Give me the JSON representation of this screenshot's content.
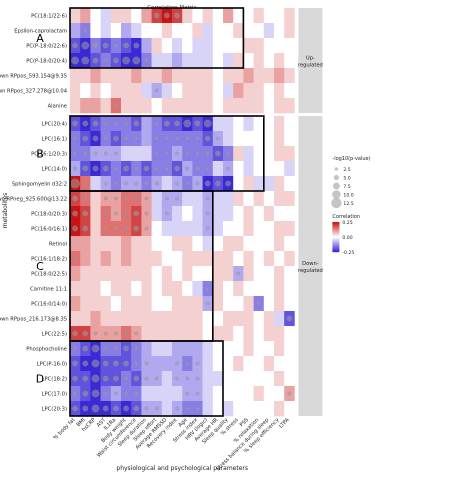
{
  "chart_data": {
    "type": "heatmap",
    "title": "Correlation Matrix",
    "xlabel": "physiological and psychological parameters",
    "ylabel": "metabolites",
    "rows": [
      "PC(18:1/22:6)",
      "Epsilon-caprolactam",
      "PC(P-18:0/22:6)",
      "PC(P-18:0/20:4)",
      "Unknown RPpos_593.154@9.35",
      "Unknown RPpos_327.278@10.04",
      "Alanine",
      "LPC(20:4)",
      "LPC(16:1)",
      "PC(16:1/20:3)",
      "LPC(14:0)",
      "Sphingomyelin d32:2",
      "Unknown RPneg_925.600@13.22",
      "PC(18:0/20:3)",
      "PC(16:0/16:1)",
      "Retinol",
      "PC(16:1/18:2)",
      "PC(18:0/22:5)",
      "Carnitine 11:1",
      "PC(16:0/14:0)",
      "Unknown RPpos_216.173@8.35",
      "LPC(22:5)",
      "Phosphocholine",
      "LPC(P-16:0)",
      "LPC(18:2)",
      "LPC(17:0)",
      "LPC(20:3)"
    ],
    "columns": [
      "% body fat",
      "BMI",
      "hsCRP",
      "AST",
      "IL1Ra",
      "Body weight",
      "Waist circumference",
      "Sleep duration",
      "Sleep effort",
      "Average RMSSD",
      "Recovery index",
      "Age",
      "Stress index",
      "HRV (logic)",
      "Average HR",
      "Sleep quality",
      "% stress",
      "PSS",
      "% relaxation",
      "Stress balance during sleep",
      "% sleep efficiency",
      "LTPA"
    ],
    "values": [
      [
        0.05,
        0.1,
        0.0,
        -0.05,
        0.05,
        0.05,
        0.0,
        0.1,
        0.2,
        0.25,
        0.2,
        0.05,
        0.0,
        0.05,
        0.0,
        0.1,
        0.0,
        0.0,
        0.05,
        0.0,
        0.0,
        0.05
      ],
      [
        -0.1,
        -0.15,
        0.0,
        -0.05,
        0.0,
        -0.1,
        -0.05,
        0.0,
        0.0,
        0.05,
        0.0,
        0.0,
        0.05,
        -0.05,
        0.0,
        0.0,
        0.05,
        0.0,
        0.0,
        -0.05,
        0.0,
        0.05
      ],
      [
        -0.2,
        -0.25,
        -0.15,
        -0.2,
        -0.15,
        -0.2,
        -0.25,
        -0.1,
        0.05,
        0.0,
        -0.05,
        0.0,
        -0.05,
        -0.05,
        0.0,
        0.0,
        0.0,
        0.05,
        0.05,
        0.0,
        0.0,
        0.0
      ],
      [
        -0.25,
        -0.3,
        -0.2,
        -0.15,
        -0.2,
        -0.25,
        -0.3,
        -0.15,
        -0.05,
        -0.05,
        -0.1,
        -0.05,
        -0.05,
        -0.05,
        0.0,
        -0.05,
        0.05,
        0.0,
        0.05,
        0.0,
        0.05,
        0.0
      ],
      [
        0.05,
        0.05,
        0.1,
        0.05,
        0.05,
        0.05,
        0.1,
        0.05,
        0.05,
        0.1,
        0.05,
        0.05,
        0.05,
        0.05,
        0.0,
        0.05,
        0.05,
        0.1,
        0.05,
        0.05,
        0.1,
        0.05
      ],
      [
        0.05,
        0.0,
        0.05,
        0.0,
        0.05,
        0.05,
        0.05,
        -0.05,
        -0.1,
        -0.05,
        0.0,
        0.05,
        0.05,
        0.05,
        0.0,
        -0.05,
        0.1,
        0.05,
        0.05,
        0.0,
        0.05,
        0.0
      ],
      [
        0.05,
        0.1,
        0.1,
        0.05,
        0.15,
        0.05,
        0.05,
        0.05,
        0.0,
        0.05,
        0.05,
        0.05,
        0.05,
        0.05,
        0.0,
        0.05,
        0.05,
        0.05,
        0.05,
        0.0,
        0.05,
        0.05
      ],
      [
        -0.2,
        -0.25,
        -0.2,
        -0.15,
        -0.15,
        -0.15,
        -0.2,
        -0.1,
        -0.15,
        -0.2,
        -0.2,
        -0.25,
        -0.2,
        -0.25,
        -0.05,
        -0.05,
        0.0,
        -0.05,
        0.0,
        0.0,
        0.05,
        0.0
      ],
      [
        -0.15,
        -0.2,
        -0.25,
        -0.15,
        -0.2,
        -0.15,
        -0.15,
        -0.1,
        -0.15,
        -0.15,
        -0.15,
        -0.15,
        -0.15,
        -0.2,
        -0.1,
        -0.05,
        0.0,
        0.0,
        0.0,
        0.0,
        0.05,
        0.0
      ],
      [
        -0.15,
        -0.15,
        -0.1,
        -0.1,
        -0.1,
        -0.05,
        -0.05,
        -0.05,
        -0.15,
        -0.15,
        -0.1,
        -0.15,
        -0.15,
        -0.15,
        -0.2,
        -0.15,
        0.05,
        -0.05,
        0.0,
        0.0,
        0.05,
        0.05
      ],
      [
        -0.1,
        -0.2,
        -0.25,
        -0.2,
        -0.15,
        -0.2,
        -0.15,
        -0.2,
        -0.15,
        -0.15,
        -0.2,
        -0.1,
        -0.15,
        -0.15,
        -0.05,
        -0.1,
        0.0,
        -0.05,
        0.0,
        0.0,
        0.0,
        -0.05
      ],
      [
        0.3,
        0.15,
        -0.05,
        -0.1,
        -0.15,
        -0.1,
        -0.1,
        -0.15,
        -0.1,
        -0.05,
        -0.1,
        -0.15,
        -0.1,
        -0.25,
        -0.2,
        -0.25,
        0.0,
        0.05,
        -0.05,
        -0.05,
        0.05,
        0.0
      ],
      [
        0.2,
        0.15,
        0.05,
        0.1,
        0.1,
        0.15,
        0.15,
        0.1,
        -0.05,
        -0.1,
        -0.1,
        -0.05,
        -0.05,
        -0.1,
        -0.05,
        -0.05,
        0.05,
        0.0,
        0.05,
        0.0,
        0.05,
        0.05
      ],
      [
        0.25,
        0.2,
        0.05,
        0.15,
        0.1,
        0.15,
        0.2,
        0.1,
        -0.05,
        -0.1,
        -0.05,
        0.0,
        -0.05,
        -0.1,
        -0.05,
        -0.05,
        0.0,
        0.05,
        0.0,
        0.05,
        0.0,
        0.0
      ],
      [
        0.25,
        0.2,
        0.05,
        0.15,
        0.15,
        0.15,
        0.2,
        0.1,
        0.0,
        -0.05,
        -0.05,
        -0.05,
        -0.05,
        -0.1,
        -0.05,
        0.0,
        0.0,
        0.05,
        0.0,
        0.0,
        0.05,
        0.05
      ],
      [
        0.1,
        0.1,
        0.05,
        0.05,
        0.05,
        0.1,
        0.05,
        0.05,
        0.0,
        0.0,
        0.05,
        0.05,
        0.0,
        -0.05,
        0.0,
        0.05,
        0.05,
        0.0,
        0.0,
        0.0,
        0.05,
        0.0
      ],
      [
        0.15,
        0.1,
        0.05,
        0.1,
        0.05,
        0.1,
        0.05,
        0.05,
        0.05,
        0.0,
        0.0,
        0.05,
        0.05,
        0.05,
        0.05,
        0.05,
        0.0,
        0.05,
        0.0,
        0.05,
        0.0,
        0.05
      ],
      [
        0.1,
        0.05,
        0.05,
        0.05,
        0.05,
        0.05,
        0.05,
        0.05,
        0.0,
        0.05,
        0.0,
        0.05,
        0.0,
        0.0,
        0.05,
        0.05,
        -0.1,
        0.05,
        0.0,
        0.0,
        0.05,
        0.0
      ],
      [
        0.05,
        0.05,
        0.05,
        0.0,
        0.05,
        0.05,
        0.0,
        0.05,
        0.0,
        0.05,
        0.05,
        0.0,
        -0.05,
        -0.15,
        0.05,
        0.0,
        0.05,
        0.0,
        0.0,
        0.0,
        0.05,
        0.0
      ],
      [
        0.1,
        0.05,
        0.05,
        0.05,
        0.0,
        0.05,
        0.05,
        0.05,
        0.0,
        0.0,
        0.05,
        0.05,
        0.05,
        -0.1,
        0.05,
        0.0,
        0.0,
        0.05,
        -0.15,
        0.0,
        0.05,
        0.0
      ],
      [
        0.05,
        0.05,
        0.1,
        0.05,
        0.05,
        0.05,
        0.05,
        0.05,
        0.05,
        0.05,
        0.05,
        0.05,
        0.05,
        0.0,
        0.0,
        0.05,
        0.05,
        0.05,
        0.0,
        0.05,
        -0.05,
        -0.2
      ],
      [
        0.2,
        0.2,
        0.1,
        0.1,
        0.1,
        0.15,
        0.1,
        0.05,
        0.05,
        0.05,
        0.05,
        0.05,
        0.05,
        0.0,
        0.05,
        0.05,
        0.0,
        0.05,
        0.0,
        0.05,
        0.05,
        0.0
      ],
      [
        -0.15,
        -0.2,
        -0.3,
        -0.15,
        -0.15,
        -0.2,
        -0.15,
        -0.1,
        -0.05,
        -0.05,
        -0.1,
        -0.1,
        -0.1,
        -0.05,
        0.0,
        0.0,
        0.0,
        0.05,
        0.0,
        0.0,
        0.05,
        0.0
      ],
      [
        -0.2,
        -0.25,
        -0.3,
        -0.2,
        -0.2,
        -0.2,
        -0.15,
        -0.1,
        -0.1,
        -0.1,
        -0.1,
        -0.15,
        -0.1,
        -0.05,
        0.0,
        0.0,
        0.05,
        0.0,
        0.0,
        0.05,
        0.0,
        0.0
      ],
      [
        -0.2,
        -0.2,
        -0.3,
        -0.2,
        -0.2,
        -0.15,
        -0.2,
        -0.1,
        -0.1,
        -0.05,
        -0.1,
        -0.1,
        -0.1,
        -0.05,
        -0.05,
        0.0,
        0.0,
        0.0,
        0.0,
        0.0,
        0.05,
        0.0
      ],
      [
        -0.15,
        -0.2,
        -0.25,
        -0.15,
        -0.1,
        -0.15,
        -0.15,
        -0.05,
        -0.05,
        -0.05,
        -0.05,
        -0.1,
        -0.1,
        -0.05,
        0.0,
        0.0,
        0.0,
        0.0,
        0.05,
        0.0,
        0.0,
        0.1
      ],
      [
        -0.2,
        -0.25,
        -0.3,
        -0.25,
        -0.2,
        -0.25,
        -0.2,
        -0.1,
        -0.1,
        -0.05,
        -0.1,
        -0.15,
        -0.15,
        -0.05,
        0.0,
        -0.05,
        0.0,
        0.0,
        0.0,
        0.0,
        0.05,
        0.0
      ]
    ],
    "significance": [
      [
        0,
        0,
        0,
        0,
        0,
        0,
        0,
        0,
        2,
        2,
        2,
        0,
        0,
        0,
        0,
        0,
        0,
        0,
        0,
        0,
        0,
        0
      ],
      [
        0,
        1,
        0,
        0,
        0,
        0,
        0,
        0,
        0,
        0,
        0,
        0,
        0,
        0,
        0,
        0,
        0,
        0,
        0,
        0,
        0,
        0
      ],
      [
        2,
        3,
        2,
        2,
        1,
        2,
        2,
        0,
        0,
        0,
        0,
        0,
        0,
        0,
        0,
        0,
        0,
        0,
        0,
        0,
        0,
        0
      ],
      [
        3,
        3,
        2,
        1,
        2,
        3,
        3,
        1,
        0,
        0,
        0,
        0,
        0,
        0,
        0,
        0,
        0,
        0,
        0,
        0,
        0,
        0
      ],
      [
        0,
        0,
        0,
        0,
        0,
        0,
        0,
        0,
        0,
        0,
        0,
        0,
        0,
        0,
        0,
        0,
        0,
        0,
        0,
        0,
        0,
        0
      ],
      [
        0,
        0,
        0,
        0,
        0,
        0,
        0,
        0,
        1,
        0,
        0,
        0,
        0,
        0,
        0,
        0,
        0,
        0,
        0,
        0,
        0,
        0
      ],
      [
        0,
        0,
        0,
        0,
        1,
        0,
        0,
        0,
        0,
        0,
        0,
        0,
        0,
        0,
        0,
        0,
        0,
        0,
        0,
        0,
        0,
        0
      ],
      [
        2,
        2,
        2,
        1,
        1,
        1,
        2,
        0,
        1,
        2,
        2,
        3,
        2,
        3,
        0,
        0,
        0,
        0,
        0,
        0,
        0,
        0
      ],
      [
        1,
        2,
        2,
        1,
        2,
        1,
        1,
        0,
        1,
        1,
        1,
        1,
        1,
        2,
        1,
        0,
        0,
        0,
        0,
        0,
        0,
        0
      ],
      [
        1,
        1,
        1,
        1,
        1,
        0,
        0,
        0,
        1,
        1,
        1,
        1,
        1,
        1,
        2,
        1,
        0,
        0,
        0,
        0,
        0,
        0
      ],
      [
        1,
        2,
        2,
        2,
        1,
        2,
        1,
        2,
        1,
        1,
        2,
        1,
        1,
        1,
        0,
        1,
        0,
        0,
        0,
        0,
        0,
        0
      ],
      [
        4,
        1,
        0,
        1,
        1,
        1,
        1,
        1,
        1,
        0,
        1,
        1,
        1,
        2,
        2,
        2,
        0,
        0,
        0,
        0,
        0,
        0
      ],
      [
        2,
        1,
        0,
        1,
        1,
        1,
        1,
        1,
        0,
        1,
        1,
        0,
        0,
        1,
        0,
        0,
        0,
        0,
        0,
        0,
        0,
        0
      ],
      [
        2,
        2,
        0,
        1,
        1,
        1,
        2,
        1,
        0,
        1,
        0,
        0,
        0,
        1,
        0,
        0,
        0,
        0,
        0,
        0,
        0,
        0
      ],
      [
        2,
        2,
        0,
        1,
        1,
        1,
        2,
        1,
        0,
        0,
        0,
        0,
        0,
        1,
        0,
        0,
        0,
        0,
        0,
        0,
        0,
        0
      ],
      [
        0,
        0,
        0,
        0,
        0,
        0,
        0,
        0,
        0,
        0,
        0,
        0,
        0,
        0,
        0,
        0,
        0,
        0,
        0,
        0,
        0,
        0
      ],
      [
        1,
        0,
        0,
        0,
        0,
        0,
        0,
        0,
        0,
        0,
        0,
        0,
        0,
        0,
        0,
        0,
        0,
        0,
        0,
        0,
        0,
        0
      ],
      [
        0,
        0,
        0,
        0,
        0,
        0,
        0,
        0,
        0,
        0,
        0,
        0,
        0,
        0,
        0,
        0,
        1,
        0,
        0,
        0,
        0,
        0
      ],
      [
        0,
        0,
        0,
        0,
        0,
        0,
        0,
        0,
        0,
        0,
        0,
        0,
        0,
        1,
        0,
        0,
        0,
        0,
        0,
        0,
        0,
        0
      ],
      [
        0,
        0,
        0,
        0,
        0,
        0,
        0,
        0,
        0,
        0,
        0,
        0,
        0,
        1,
        0,
        0,
        0,
        0,
        1,
        0,
        0,
        0
      ],
      [
        0,
        0,
        0,
        0,
        0,
        0,
        0,
        0,
        0,
        0,
        0,
        0,
        0,
        0,
        0,
        0,
        0,
        0,
        0,
        0,
        0,
        2
      ],
      [
        2,
        2,
        1,
        1,
        1,
        1,
        1,
        0,
        0,
        0,
        0,
        0,
        0,
        0,
        0,
        0,
        0,
        0,
        0,
        0,
        0,
        0
      ],
      [
        1,
        2,
        3,
        1,
        1,
        2,
        1,
        0,
        0,
        0,
        0,
        0,
        0,
        0,
        0,
        0,
        0,
        0,
        0,
        0,
        0,
        0
      ],
      [
        2,
        2,
        3,
        2,
        2,
        2,
        1,
        1,
        0,
        0,
        1,
        1,
        1,
        0,
        0,
        0,
        0,
        0,
        0,
        0,
        0,
        0
      ],
      [
        2,
        2,
        3,
        2,
        2,
        1,
        2,
        1,
        1,
        0,
        1,
        1,
        1,
        0,
        0,
        0,
        0,
        0,
        0,
        0,
        0,
        0
      ],
      [
        1,
        2,
        3,
        1,
        1,
        1,
        1,
        0,
        0,
        0,
        0,
        1,
        1,
        0,
        0,
        0,
        0,
        0,
        0,
        0,
        0,
        1
      ],
      [
        2,
        2,
        3,
        2,
        2,
        2,
        2,
        1,
        1,
        0,
        1,
        1,
        1,
        0,
        0,
        0,
        0,
        0,
        0,
        0,
        0,
        0
      ]
    ],
    "groups": [
      {
        "label": "A",
        "rows": [
          0,
          3
        ],
        "cols": [
          0,
          16
        ]
      },
      {
        "label": "B",
        "rows": [
          7,
          11
        ],
        "cols": [
          0,
          18
        ]
      },
      {
        "label": "C",
        "rows": [
          12,
          21
        ],
        "cols": [
          0,
          13
        ]
      },
      {
        "label": "D",
        "rows": [
          22,
          26
        ],
        "cols": [
          0,
          14
        ]
      }
    ],
    "facets": [
      {
        "label": "Up-\nregulated",
        "rows": [
          0,
          6
        ]
      },
      {
        "label": "Down-\nregulated",
        "rows": [
          7,
          26
        ]
      }
    ],
    "color_scale": {
      "title": "Correlation",
      "min": -0.25,
      "max": 0.25,
      "ticks": [
        0.25,
        0.0,
        -0.25
      ],
      "low": "#3b28d6",
      "mid": "#ffffff",
      "high": "#c81414"
    },
    "size_legend": {
      "title": "-log10(p-value)",
      "values": [
        2.5,
        5.0,
        7.5,
        10.0,
        12.5
      ]
    },
    "ylim_note": ""
  },
  "colors": {
    "facet_strip": "#d9d9d9",
    "box": "#000000"
  }
}
